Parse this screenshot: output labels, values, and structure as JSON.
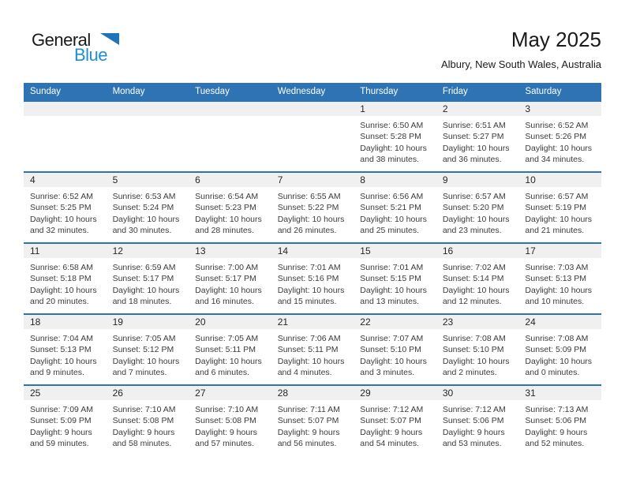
{
  "logo": {
    "general": "General",
    "blue": "Blue"
  },
  "header": {
    "title": "May 2025",
    "subtitle": "Albury, New South Wales, Australia"
  },
  "colors": {
    "header_bar_blue": "#2e74b5",
    "week_separator_blue": "#2e74b5",
    "day_band_gray": "#f0f0f0",
    "logo_text_blue": "#1e8fd0",
    "logo_triangle_blue": "#1c74ba",
    "body_text": "#3b3b3b"
  },
  "calendar": {
    "day_headers": [
      "Sunday",
      "Monday",
      "Tuesday",
      "Wednesday",
      "Thursday",
      "Friday",
      "Saturday"
    ],
    "weeks": [
      [
        null,
        null,
        null,
        null,
        {
          "date": "1",
          "sunrise": "Sunrise: 6:50 AM",
          "sunset": "Sunset: 5:28 PM",
          "daylight": "Daylight: 10 hours and 38 minutes."
        },
        {
          "date": "2",
          "sunrise": "Sunrise: 6:51 AM",
          "sunset": "Sunset: 5:27 PM",
          "daylight": "Daylight: 10 hours and 36 minutes."
        },
        {
          "date": "3",
          "sunrise": "Sunrise: 6:52 AM",
          "sunset": "Sunset: 5:26 PM",
          "daylight": "Daylight: 10 hours and 34 minutes."
        }
      ],
      [
        {
          "date": "4",
          "sunrise": "Sunrise: 6:52 AM",
          "sunset": "Sunset: 5:25 PM",
          "daylight": "Daylight: 10 hours and 32 minutes."
        },
        {
          "date": "5",
          "sunrise": "Sunrise: 6:53 AM",
          "sunset": "Sunset: 5:24 PM",
          "daylight": "Daylight: 10 hours and 30 minutes."
        },
        {
          "date": "6",
          "sunrise": "Sunrise: 6:54 AM",
          "sunset": "Sunset: 5:23 PM",
          "daylight": "Daylight: 10 hours and 28 minutes."
        },
        {
          "date": "7",
          "sunrise": "Sunrise: 6:55 AM",
          "sunset": "Sunset: 5:22 PM",
          "daylight": "Daylight: 10 hours and 26 minutes."
        },
        {
          "date": "8",
          "sunrise": "Sunrise: 6:56 AM",
          "sunset": "Sunset: 5:21 PM",
          "daylight": "Daylight: 10 hours and 25 minutes."
        },
        {
          "date": "9",
          "sunrise": "Sunrise: 6:57 AM",
          "sunset": "Sunset: 5:20 PM",
          "daylight": "Daylight: 10 hours and 23 minutes."
        },
        {
          "date": "10",
          "sunrise": "Sunrise: 6:57 AM",
          "sunset": "Sunset: 5:19 PM",
          "daylight": "Daylight: 10 hours and 21 minutes."
        }
      ],
      [
        {
          "date": "11",
          "sunrise": "Sunrise: 6:58 AM",
          "sunset": "Sunset: 5:18 PM",
          "daylight": "Daylight: 10 hours and 20 minutes."
        },
        {
          "date": "12",
          "sunrise": "Sunrise: 6:59 AM",
          "sunset": "Sunset: 5:17 PM",
          "daylight": "Daylight: 10 hours and 18 minutes."
        },
        {
          "date": "13",
          "sunrise": "Sunrise: 7:00 AM",
          "sunset": "Sunset: 5:17 PM",
          "daylight": "Daylight: 10 hours and 16 minutes."
        },
        {
          "date": "14",
          "sunrise": "Sunrise: 7:01 AM",
          "sunset": "Sunset: 5:16 PM",
          "daylight": "Daylight: 10 hours and 15 minutes."
        },
        {
          "date": "15",
          "sunrise": "Sunrise: 7:01 AM",
          "sunset": "Sunset: 5:15 PM",
          "daylight": "Daylight: 10 hours and 13 minutes."
        },
        {
          "date": "16",
          "sunrise": "Sunrise: 7:02 AM",
          "sunset": "Sunset: 5:14 PM",
          "daylight": "Daylight: 10 hours and 12 minutes."
        },
        {
          "date": "17",
          "sunrise": "Sunrise: 7:03 AM",
          "sunset": "Sunset: 5:13 PM",
          "daylight": "Daylight: 10 hours and 10 minutes."
        }
      ],
      [
        {
          "date": "18",
          "sunrise": "Sunrise: 7:04 AM",
          "sunset": "Sunset: 5:13 PM",
          "daylight": "Daylight: 10 hours and 9 minutes."
        },
        {
          "date": "19",
          "sunrise": "Sunrise: 7:05 AM",
          "sunset": "Sunset: 5:12 PM",
          "daylight": "Daylight: 10 hours and 7 minutes."
        },
        {
          "date": "20",
          "sunrise": "Sunrise: 7:05 AM",
          "sunset": "Sunset: 5:11 PM",
          "daylight": "Daylight: 10 hours and 6 minutes."
        },
        {
          "date": "21",
          "sunrise": "Sunrise: 7:06 AM",
          "sunset": "Sunset: 5:11 PM",
          "daylight": "Daylight: 10 hours and 4 minutes."
        },
        {
          "date": "22",
          "sunrise": "Sunrise: 7:07 AM",
          "sunset": "Sunset: 5:10 PM",
          "daylight": "Daylight: 10 hours and 3 minutes."
        },
        {
          "date": "23",
          "sunrise": "Sunrise: 7:08 AM",
          "sunset": "Sunset: 5:10 PM",
          "daylight": "Daylight: 10 hours and 2 minutes."
        },
        {
          "date": "24",
          "sunrise": "Sunrise: 7:08 AM",
          "sunset": "Sunset: 5:09 PM",
          "daylight": "Daylight: 10 hours and 0 minutes."
        }
      ],
      [
        {
          "date": "25",
          "sunrise": "Sunrise: 7:09 AM",
          "sunset": "Sunset: 5:09 PM",
          "daylight": "Daylight: 9 hours and 59 minutes."
        },
        {
          "date": "26",
          "sunrise": "Sunrise: 7:10 AM",
          "sunset": "Sunset: 5:08 PM",
          "daylight": "Daylight: 9 hours and 58 minutes."
        },
        {
          "date": "27",
          "sunrise": "Sunrise: 7:10 AM",
          "sunset": "Sunset: 5:08 PM",
          "daylight": "Daylight: 9 hours and 57 minutes."
        },
        {
          "date": "28",
          "sunrise": "Sunrise: 7:11 AM",
          "sunset": "Sunset: 5:07 PM",
          "daylight": "Daylight: 9 hours and 56 minutes."
        },
        {
          "date": "29",
          "sunrise": "Sunrise: 7:12 AM",
          "sunset": "Sunset: 5:07 PM",
          "daylight": "Daylight: 9 hours and 54 minutes."
        },
        {
          "date": "30",
          "sunrise": "Sunrise: 7:12 AM",
          "sunset": "Sunset: 5:06 PM",
          "daylight": "Daylight: 9 hours and 53 minutes."
        },
        {
          "date": "31",
          "sunrise": "Sunrise: 7:13 AM",
          "sunset": "Sunset: 5:06 PM",
          "daylight": "Daylight: 9 hours and 52 minutes."
        }
      ]
    ]
  }
}
